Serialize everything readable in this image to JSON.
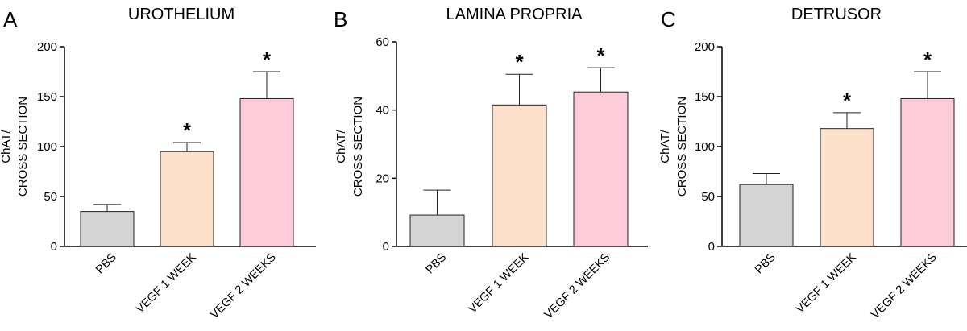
{
  "chart_data": [
    {
      "type": "bar",
      "panel_letter": "A",
      "title": "UROTHELIUM",
      "ylabel_lines": [
        "ChAT/",
        "CROSS SECTION"
      ],
      "categories": [
        "PBS",
        "VEGF 1 WEEK",
        "VEGF 2 WEEKS"
      ],
      "values": [
        35,
        95,
        148
      ],
      "errors": [
        7,
        9,
        27
      ],
      "significance": [
        "",
        "*",
        "*"
      ],
      "ylim": [
        0,
        200
      ],
      "yticks": [
        0,
        50,
        100,
        150,
        200
      ],
      "colors": [
        "#d4d4d4",
        "#fde0cc",
        "#fdcbd9"
      ]
    },
    {
      "type": "bar",
      "panel_letter": "B",
      "title": "LAMINA PROPRIA",
      "ylabel_lines": [
        "ChAT/",
        "CROSS SECTION"
      ],
      "categories": [
        "PBS",
        "VEGF 1 WEEK",
        "VEGF 2 WEEKS"
      ],
      "values": [
        9.2,
        41.5,
        45.3
      ],
      "errors": [
        7.3,
        9,
        7.1
      ],
      "significance": [
        "",
        "*",
        "*"
      ],
      "ylim": [
        0,
        60
      ],
      "yticks": [
        0,
        20,
        40,
        60
      ],
      "colors": [
        "#d4d4d4",
        "#fde0cc",
        "#fdcbd9"
      ]
    },
    {
      "type": "bar",
      "panel_letter": "C",
      "title": "DETRUSOR",
      "ylabel_lines": [
        "ChAT/",
        "CROSS SECTION"
      ],
      "categories": [
        "PBS",
        "VEGF 1 WEEK",
        "VEGF 2 WEEKS"
      ],
      "values": [
        62,
        118,
        148
      ],
      "errors": [
        11,
        16,
        27
      ],
      "significance": [
        "",
        "*",
        "*"
      ],
      "ylim": [
        0,
        200
      ],
      "yticks": [
        0,
        50,
        100,
        150,
        200
      ],
      "colors": [
        "#d4d4d4",
        "#fde0cc",
        "#fdcbd9"
      ]
    }
  ]
}
